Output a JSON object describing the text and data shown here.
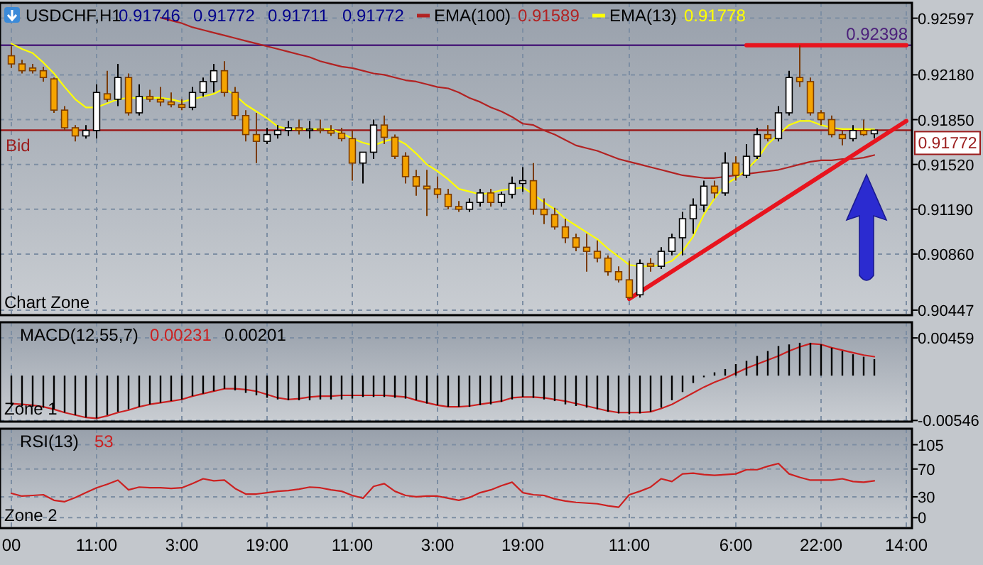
{
  "chart_data": [
    {
      "type": "candlestick",
      "title": "USDCHF,H1",
      "subtitle": "Chart Zone",
      "annotations": [
        "0.91746",
        "0.91772",
        "0.91711",
        "0.91772",
        "0.91589",
        "0.91778",
        {
          "text": "0.92398",
          "y": 0.92398
        }
      ],
      "legend": "top",
      "grid": true,
      "tick_labels": "y",
      "categories": [
        null,
        null,
        null,
        null,
        null,
        null,
        null,
        null,
        null,
        null,
        null,
        null,
        null,
        null,
        null,
        null,
        null,
        null,
        null,
        null,
        null,
        null,
        null,
        null,
        null,
        null,
        null,
        null,
        null,
        null,
        null,
        null,
        null,
        null,
        null,
        null,
        null,
        null,
        null,
        null,
        null,
        null,
        null,
        null,
        null,
        null,
        null,
        null,
        null,
        null,
        null,
        null,
        null,
        null,
        null,
        null,
        null,
        null,
        null,
        null,
        null,
        null,
        null,
        null,
        null,
        null,
        null,
        null,
        null,
        null,
        null,
        null,
        null,
        null,
        null,
        null,
        null,
        null,
        null,
        null,
        null,
        null,
        null,
        null,
        null
      ],
      "ylim": [
        0.9041,
        0.9271
      ],
      "yticks": [
        0.92597,
        {
          "value": 0.9218,
          "label": "0.92180"
        },
        {
          "value": 0.9185,
          "label": "0.91850"
        },
        {
          "value": 0.9152,
          "label": "0.91520"
        },
        {
          "value": 0.9119,
          "label": "0.91190"
        },
        {
          "value": 0.9086,
          "label": "0.90860"
        },
        0.90447
      ],
      "ohlc": [
        [
          0.9232,
          0.9239,
          0.9223,
          0.9226
        ],
        [
          0.9226,
          0.9229,
          0.9219,
          0.9221
        ],
        [
          0.9223,
          0.9226,
          0.9219,
          0.9221
        ],
        [
          0.9221,
          0.9224,
          0.9213,
          0.9216
        ],
        [
          0.9215,
          0.9216,
          0.919,
          0.9192
        ],
        [
          0.9192,
          0.9195,
          0.9177,
          0.9179
        ],
        [
          0.9179,
          0.9181,
          0.9169,
          0.9173
        ],
        [
          0.9173,
          0.9181,
          0.9171,
          0.9177
        ],
        [
          0.9177,
          0.9211,
          0.9171,
          0.9205
        ],
        [
          0.9204,
          0.9221,
          0.9198,
          0.92
        ],
        [
          0.92,
          0.9226,
          0.9195,
          0.9216
        ],
        [
          0.9216,
          0.9219,
          0.9188,
          0.919
        ],
        [
          0.919,
          0.9211,
          0.9188,
          0.9202
        ],
        [
          0.9202,
          0.9207,
          0.9198,
          0.92
        ],
        [
          0.92,
          0.9209,
          0.9195,
          0.9198
        ],
        [
          0.9198,
          0.9205,
          0.9194,
          0.9196
        ],
        [
          0.9196,
          0.92,
          0.9192,
          0.9194
        ],
        [
          0.9194,
          0.9209,
          0.9192,
          0.9205
        ],
        [
          0.9205,
          0.9216,
          0.9202,
          0.9213
        ],
        [
          0.9213,
          0.9226,
          0.9205,
          0.9221
        ],
        [
          0.9221,
          0.9228,
          0.9202,
          0.9205
        ],
        [
          0.9205,
          0.9209,
          0.9185,
          0.9188
        ],
        [
          0.9188,
          0.9192,
          0.9169,
          0.9174
        ],
        [
          0.9174,
          0.919,
          0.9153,
          0.9169
        ],
        [
          0.9169,
          0.9179,
          0.9167,
          0.9174
        ],
        [
          0.9174,
          0.9181,
          0.9171,
          0.9177
        ],
        [
          0.9177,
          0.9184,
          0.9173,
          0.9179
        ],
        [
          0.9179,
          0.9185,
          0.9174,
          0.9177
        ],
        [
          0.9177,
          0.9184,
          0.9171,
          0.9178
        ],
        [
          0.9178,
          0.9185,
          0.9175,
          0.9177
        ],
        [
          0.9177,
          0.9181,
          0.9173,
          0.9175
        ],
        [
          0.9175,
          0.9179,
          0.9169,
          0.9171
        ],
        [
          0.9171,
          0.9177,
          0.914,
          0.9153
        ],
        [
          0.9153,
          0.9161,
          0.9138,
          0.9161
        ],
        [
          0.9161,
          0.9185,
          0.9156,
          0.9181
        ],
        [
          0.9181,
          0.9188,
          0.9167,
          0.9172
        ],
        [
          0.9172,
          0.9174,
          0.9156,
          0.9158
        ],
        [
          0.9158,
          0.9161,
          0.9138,
          0.9143
        ],
        [
          0.9143,
          0.9148,
          0.9129,
          0.9136
        ],
        [
          0.9136,
          0.9148,
          0.9114,
          0.9134
        ],
        [
          0.9134,
          0.9143,
          0.9127,
          0.913
        ],
        [
          0.913,
          0.9134,
          0.9119,
          0.9121
        ],
        [
          0.9121,
          0.9125,
          0.9117,
          0.9119
        ],
        [
          0.9119,
          0.9127,
          0.9117,
          0.9124
        ],
        [
          0.9124,
          0.9134,
          0.9121,
          0.9131
        ],
        [
          0.9131,
          0.9134,
          0.9121,
          0.9124
        ],
        [
          0.9124,
          0.9132,
          0.9121,
          0.913
        ],
        [
          0.913,
          0.9143,
          0.9127,
          0.9138
        ],
        [
          0.9138,
          0.915,
          0.9132,
          0.914
        ],
        [
          0.914,
          0.9153,
          0.9115,
          0.9119
        ],
        [
          0.9119,
          0.9127,
          0.9108,
          0.9115
        ],
        [
          0.9115,
          0.912,
          0.9104,
          0.9106
        ],
        [
          0.9106,
          0.9112,
          0.9094,
          0.9098
        ],
        [
          0.9098,
          0.9101,
          0.9088,
          0.9091
        ],
        [
          0.9091,
          0.9101,
          0.9073,
          0.9088
        ],
        [
          0.9088,
          0.9096,
          0.908,
          0.9083
        ],
        [
          0.9083,
          0.9085,
          0.907,
          0.9073
        ],
        [
          0.9073,
          0.9077,
          0.9065,
          0.9067
        ],
        [
          0.9067,
          0.9081,
          0.9053,
          0.9054
        ],
        [
          0.9056,
          0.9082,
          0.9054,
          0.9079
        ],
        [
          0.9079,
          0.9083,
          0.9073,
          0.9077
        ],
        [
          0.9077,
          0.9091,
          0.9075,
          0.9088
        ],
        [
          0.9088,
          0.9101,
          0.9085,
          0.9098
        ],
        [
          0.9098,
          0.9117,
          0.9085,
          0.9112
        ],
        [
          0.9112,
          0.9127,
          0.9101,
          0.9122
        ],
        [
          0.9122,
          0.914,
          0.9117,
          0.9136
        ],
        [
          0.9136,
          0.914,
          0.9127,
          0.9131
        ],
        [
          0.9131,
          0.9161,
          0.9129,
          0.9153
        ],
        [
          0.9153,
          0.9158,
          0.914,
          0.9144
        ],
        [
          0.9144,
          0.9167,
          0.9142,
          0.9158
        ],
        [
          0.9158,
          0.9179,
          0.9156,
          0.9174
        ],
        [
          0.9174,
          0.9181,
          0.9169,
          0.9171
        ],
        [
          0.9171,
          0.9195,
          0.9169,
          0.919
        ],
        [
          0.919,
          0.9221,
          0.9188,
          0.9216
        ],
        [
          0.9216,
          0.92398,
          0.9209,
          0.9213
        ],
        [
          0.9213,
          0.9216,
          0.9188,
          0.919
        ],
        [
          0.919,
          0.9192,
          0.9181,
          0.9185
        ],
        [
          0.9185,
          0.9188,
          0.9172,
          0.9174
        ],
        [
          0.9174,
          0.9177,
          0.9166,
          0.9171
        ],
        [
          0.9171,
          0.9181,
          0.9169,
          0.9177
        ],
        [
          0.9177,
          0.9185,
          0.9173,
          0.9174
        ],
        [
          0.91746,
          0.91772,
          0.91711,
          0.91772
        ],
        null,
        null,
        null
      ],
      "series": [
        {
          "name": "EMA(100)",
          "type": "line",
          "color": "#b22222",
          "values": [
            null,
            null,
            null,
            null,
            null,
            null,
            null,
            null,
            null,
            null,
            null,
            null,
            null,
            null,
            0.926,
            0.9258,
            0.9256,
            0.9253,
            0.9251,
            0.9249,
            0.9247,
            0.9245,
            0.9243,
            0.9241,
            0.9239,
            0.9237,
            0.9235,
            0.9233,
            0.9231,
            0.9228,
            0.9226,
            0.9224,
            0.9223,
            0.9221,
            0.9219,
            0.9218,
            0.9216,
            0.9214,
            0.9213,
            0.9211,
            0.9209,
            0.9208,
            0.9205,
            0.9201,
            0.9198,
            0.9194,
            0.9191,
            0.9187,
            0.9182,
            0.9181,
            0.9177,
            0.9174,
            0.917,
            0.9166,
            0.9164,
            0.9162,
            0.9159,
            0.9156,
            0.9154,
            0.9152,
            0.915,
            0.9148,
            0.9146,
            0.9144,
            0.9143,
            0.9142,
            0.9142,
            0.9143,
            0.9144,
            0.9145,
            0.9146,
            0.9147,
            0.9148,
            0.915,
            0.9152,
            0.9154,
            0.9155,
            0.9155,
            0.9156,
            0.9156,
            0.9157,
            0.91589,
            null,
            null,
            null
          ]
        },
        {
          "name": "EMA(13)",
          "type": "line",
          "color": "#ffff00",
          "values": [
            0.9241,
            0.9237,
            0.9234,
            0.9227,
            0.9219,
            0.9209,
            0.92,
            0.9194,
            0.9194,
            0.9197,
            0.92,
            0.9201,
            0.9201,
            0.9201,
            0.9201,
            0.92,
            0.9198,
            0.92,
            0.9202,
            0.9204,
            0.9208,
            0.9203,
            0.9196,
            0.9191,
            0.9186,
            0.918,
            0.9178,
            0.9178,
            0.9178,
            0.9178,
            0.9178,
            0.9175,
            0.9171,
            0.9168,
            0.9166,
            0.9169,
            0.9171,
            0.9167,
            0.916,
            0.9152,
            0.9147,
            0.9141,
            0.9134,
            0.9132,
            0.913,
            0.9131,
            0.9133,
            0.9134,
            0.9135,
            0.913,
            0.9124,
            0.9119,
            0.9112,
            0.9107,
            0.9102,
            0.9097,
            0.909,
            0.9084,
            0.9078,
            0.9077,
            0.9077,
            0.9078,
            0.9081,
            0.9088,
            0.9099,
            0.9115,
            0.9127,
            0.9137,
            0.9142,
            0.9148,
            0.9156,
            0.9167,
            0.9174,
            0.9181,
            0.9184,
            0.9184,
            0.9181,
            0.9179,
            0.9178,
            0.9178,
            0.9178,
            0.91778,
            null,
            null,
            null
          ]
        },
        {
          "type": "line",
          "color": "#e8141e",
          "values": [
            null,
            null,
            null,
            null,
            null,
            null,
            null,
            null,
            null,
            null,
            null,
            null,
            null,
            null,
            null,
            null,
            null,
            null,
            null,
            null,
            null,
            null,
            null,
            null,
            null,
            null,
            null,
            null,
            null,
            null,
            null,
            null,
            null,
            null,
            null,
            null,
            null,
            null,
            null,
            null,
            null,
            null,
            null,
            null,
            null,
            null,
            null,
            null,
            null,
            null,
            null,
            null,
            null,
            null,
            null,
            null,
            null,
            null,
            0.9053,
            null,
            null,
            null,
            null,
            null,
            null,
            null,
            null,
            null,
            null,
            null,
            null,
            null,
            null,
            null,
            null,
            null,
            null,
            null,
            null,
            null,
            null,
            null,
            null,
            null,
            0.9184
          ]
        },
        {
          "type": "line",
          "color": "#e8141e",
          "values": [
            null,
            null,
            null,
            null,
            null,
            null,
            null,
            null,
            null,
            null,
            null,
            null,
            null,
            null,
            null,
            null,
            null,
            null,
            null,
            null,
            null,
            null,
            null,
            null,
            null,
            null,
            null,
            null,
            null,
            null,
            null,
            null,
            null,
            null,
            null,
            null,
            null,
            null,
            null,
            null,
            null,
            null,
            null,
            null,
            null,
            null,
            null,
            null,
            null,
            null,
            null,
            null,
            null,
            null,
            null,
            null,
            null,
            null,
            null,
            null,
            null,
            null,
            null,
            null,
            null,
            null,
            null,
            null,
            null,
            0.92398,
            null,
            null,
            null,
            null,
            null,
            null,
            null,
            null,
            null,
            null,
            null,
            null,
            null,
            null,
            0.92398
          ]
        }
      ],
      "ref_lines": [
        {
          "axis": "y",
          "value": 0.92398,
          "color": "#4b1f7a"
        },
        {
          "axis": "y",
          "value": 0.91772,
          "label": "Bid",
          "color": "#9b1c1c"
        }
      ]
    },
    {
      "type": "bar",
      "title": "MACD(12,55,7)",
      "subtitle": "Zone 1",
      "annotations": [
        "0.00231",
        "0.00201"
      ],
      "grid": true,
      "tick_labels": "y",
      "categories": [
        null,
        null,
        null,
        null,
        null,
        null,
        null,
        null,
        null,
        null,
        null,
        null,
        null,
        null,
        null,
        null,
        null,
        null,
        null,
        null,
        null,
        null,
        null,
        null,
        null,
        null,
        null,
        null,
        null,
        null,
        null,
        null,
        null,
        null,
        null,
        null,
        null,
        null,
        null,
        null,
        null,
        null,
        null,
        null,
        null,
        null,
        null,
        null,
        null,
        null,
        null,
        null,
        null,
        null,
        null,
        null,
        null,
        null,
        null,
        null,
        null,
        null,
        null,
        null,
        null,
        null,
        null,
        null,
        null,
        null,
        null,
        null,
        null,
        null,
        null,
        null,
        null,
        null,
        null,
        null,
        null,
        null,
        null,
        null,
        null
      ],
      "ylim": [
        -0.0056,
        0.0065
      ],
      "yticks": [
        0.00459,
        -0.00546
      ],
      "series": [
        {
          "type": "line",
          "color": "#cc2020",
          "values": [
            -0.0034,
            -0.0035,
            -0.0036,
            -0.0038,
            -0.0041,
            -0.0045,
            -0.0048,
            -0.0051,
            -0.0052,
            -0.0049,
            -0.0045,
            -0.0042,
            -0.0038,
            -0.0035,
            -0.0033,
            -0.0031,
            -0.0029,
            -0.0025,
            -0.0022,
            -0.0019,
            -0.0016,
            -0.0016,
            -0.0017,
            -0.0019,
            -0.0023,
            -0.0027,
            -0.0029,
            -0.0028,
            -0.0026,
            -0.0025,
            -0.0025,
            -0.0024,
            -0.0024,
            -0.0024,
            -0.0024,
            -0.0024,
            -0.0025,
            -0.0026,
            -0.003,
            -0.0033,
            -0.0036,
            -0.0038,
            -0.0038,
            -0.0037,
            -0.0035,
            -0.0033,
            -0.0031,
            -0.0027,
            -0.0026,
            -0.0026,
            -0.0027,
            -0.0029,
            -0.0031,
            -0.0034,
            -0.0037,
            -0.004,
            -0.0043,
            -0.0045,
            -0.0045,
            -0.0045,
            -0.0044,
            -0.004,
            -0.0035,
            -0.0028,
            -0.0021,
            -0.0014,
            -0.0008,
            -0.0003,
            0.0003,
            0.0009,
            0.0014,
            0.0019,
            0.0024,
            0.003,
            0.0035,
            0.0039,
            0.0038,
            0.0034,
            0.0031,
            0.0028,
            0.0025,
            0.00231,
            null,
            null,
            null
          ]
        },
        {
          "type": "bar",
          "color": "#000000",
          "values": [
            -0.0036,
            -0.0037,
            -0.0038,
            -0.0039,
            -0.0041,
            -0.0045,
            -0.0048,
            -0.0051,
            -0.0052,
            -0.0048,
            -0.0044,
            -0.0041,
            -0.0038,
            -0.0035,
            -0.0033,
            -0.0031,
            -0.0029,
            -0.0025,
            -0.0022,
            -0.0019,
            -0.0016,
            -0.0018,
            -0.0021,
            -0.0024,
            -0.0027,
            -0.0029,
            -0.003,
            -0.003,
            -0.003,
            -0.0029,
            -0.0029,
            -0.0029,
            -0.0028,
            -0.0026,
            -0.0026,
            -0.0026,
            -0.0027,
            -0.0028,
            -0.003,
            -0.0034,
            -0.0036,
            -0.0038,
            -0.0038,
            -0.0038,
            -0.0036,
            -0.0035,
            -0.0032,
            -0.0029,
            -0.0026,
            -0.0027,
            -0.0029,
            -0.0031,
            -0.0035,
            -0.0037,
            -0.0039,
            -0.0041,
            -0.0044,
            -0.0046,
            -0.0047,
            -0.0046,
            -0.0044,
            -0.0039,
            -0.003,
            -0.002,
            -0.0009,
            -0.0002,
            0.0004,
            0.0008,
            0.0014,
            0.0018,
            0.0024,
            0.003,
            0.0036,
            0.0038,
            0.004,
            0.004,
            0.0038,
            0.0034,
            0.003,
            0.0026,
            0.0023,
            0.00201,
            null,
            null,
            null
          ]
        }
      ]
    },
    {
      "type": "line",
      "title": "RSI(13)",
      "subtitle": "Zone 2",
      "annotations": [
        "53"
      ],
      "grid": true,
      "categories": [
        "00",
        null,
        null,
        null,
        null,
        null,
        null,
        null,
        "11:00",
        null,
        null,
        null,
        null,
        null,
        null,
        null,
        "3:00",
        null,
        null,
        null,
        null,
        null,
        null,
        null,
        "19:00",
        null,
        null,
        null,
        null,
        null,
        null,
        null,
        "11:00",
        null,
        null,
        null,
        null,
        null,
        null,
        null,
        "3:00",
        null,
        null,
        null,
        null,
        null,
        null,
        null,
        "19:00",
        null,
        null,
        null,
        null,
        null,
        null,
        null,
        null,
        null,
        "11:00",
        null,
        null,
        null,
        null,
        null,
        null,
        null,
        null,
        null,
        "6:00",
        null,
        null,
        null,
        null,
        null,
        null,
        null,
        "22:00",
        null,
        null,
        null,
        null,
        null,
        null,
        null,
        "14:00"
      ],
      "ylim": [
        -15,
        128
      ],
      "yticks": [
        105,
        70,
        30,
        0
      ],
      "series": [
        {
          "type": "line",
          "color": "#cc2020",
          "values": [
            35,
            31,
            32,
            33,
            25,
            23,
            29,
            36,
            43,
            48,
            54,
            40,
            44,
            43,
            43,
            42,
            43,
            49,
            56,
            53,
            54,
            42,
            34,
            34,
            36,
            38,
            39,
            41,
            44,
            43,
            40,
            38,
            32,
            28,
            45,
            49,
            38,
            32,
            30,
            31,
            31,
            28,
            25,
            29,
            36,
            40,
            46,
            51,
            36,
            33,
            32,
            27,
            24,
            22,
            21,
            20,
            17,
            15,
            33,
            38,
            44,
            56,
            52,
            63,
            64,
            62,
            61,
            62,
            63,
            69,
            69,
            74,
            78,
            63,
            58,
            54,
            54,
            54,
            56,
            52,
            51,
            53,
            null,
            null,
            null
          ]
        }
      ]
    }
  ]
}
